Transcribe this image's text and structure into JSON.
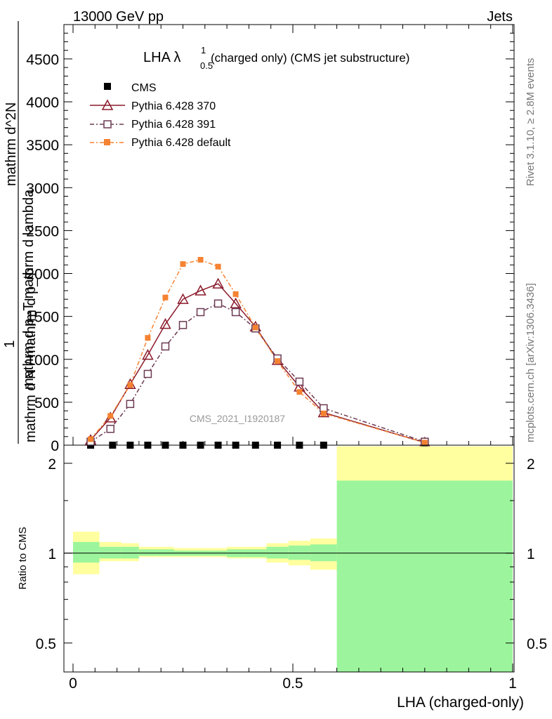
{
  "header": {
    "left": "13000 GeV pp",
    "right": "Jets"
  },
  "side_text": {
    "rivet": "Rivet 3.1.10, ≥ 2.8M events",
    "mcplots": "mcplots.cern.ch [arXiv:1306.3436]"
  },
  "chart_data": [
    {
      "type": "line",
      "title_main": "LHA λ",
      "title_sup": "1",
      "title_sub": "0.5",
      "title_rest": " (charged only) (CMS jet substructure)",
      "watermark": "CMS_2021_I1920187",
      "ylabel_top": "1",
      "ylabel_den": "mathrm d N / mathrm d p_T",
      "ylabel_num_line1": "mathrm d^2N",
      "ylabel_num_line2": "mathrm d p_T mathrm d lambda",
      "xlim": [
        0,
        1
      ],
      "ylim": [
        0,
        4900
      ],
      "yticks": [
        0,
        500,
        1000,
        1500,
        2000,
        2500,
        3000,
        3500,
        4000,
        4500
      ],
      "ytick_labels": [
        "0",
        "500",
        "1000",
        "1500",
        "2000",
        "2500",
        "3000",
        "3500",
        "4000",
        "4500"
      ],
      "series": [
        {
          "name": "CMS",
          "key": "cms",
          "color": "#000000",
          "x": [
            0.04,
            0.09,
            0.13,
            0.17,
            0.21,
            0.25,
            0.29,
            0.33,
            0.37,
            0.415,
            0.465,
            0.515,
            0.57,
            0.8
          ],
          "y": [
            0,
            0,
            0,
            0,
            0,
            0,
            0,
            0,
            0,
            0,
            0,
            0,
            0,
            0
          ]
        },
        {
          "name": "Pythia 6.428 370",
          "key": "p370",
          "color": "#8b1a2b",
          "x": [
            0.04,
            0.085,
            0.13,
            0.17,
            0.21,
            0.25,
            0.29,
            0.33,
            0.37,
            0.415,
            0.465,
            0.515,
            0.57,
            0.8
          ],
          "y": [
            60,
            320,
            710,
            1050,
            1410,
            1700,
            1800,
            1880,
            1650,
            1380,
            990,
            680,
            380,
            30
          ]
        },
        {
          "name": "Pythia 6.428 391",
          "key": "p391",
          "color": "#6b3a52",
          "x": [
            0.04,
            0.085,
            0.13,
            0.17,
            0.21,
            0.25,
            0.29,
            0.33,
            0.37,
            0.415,
            0.465,
            0.515,
            0.57,
            0.8
          ],
          "y": [
            40,
            190,
            480,
            830,
            1150,
            1400,
            1550,
            1650,
            1550,
            1360,
            1010,
            740,
            430,
            40
          ]
        },
        {
          "name": "Pythia 6.428 default",
          "key": "pdef",
          "color": "#f58231",
          "x": [
            0.04,
            0.085,
            0.13,
            0.17,
            0.21,
            0.25,
            0.29,
            0.33,
            0.37,
            0.415,
            0.465,
            0.515,
            0.57,
            0.8
          ],
          "y": [
            70,
            340,
            700,
            1250,
            1720,
            2110,
            2160,
            2080,
            1760,
            1370,
            980,
            620,
            370,
            30
          ]
        }
      ]
    },
    {
      "type": "area",
      "ylabel": "Ratio to CMS",
      "xlabel": "LHA (charged-only)",
      "xlim": [
        0,
        1
      ],
      "ylim": [
        0.4,
        2.3
      ],
      "scale": "log",
      "yticks": [
        0.5,
        1,
        2
      ],
      "ytick_labels": [
        "0.5",
        "1",
        "2"
      ],
      "xticks": [
        0,
        0.5,
        1
      ],
      "xtick_labels": [
        "0",
        "0.5",
        "1"
      ],
      "bins": [
        {
          "lo": 0.0,
          "hi": 0.06,
          "g_lo": 0.93,
          "g_hi": 1.09,
          "y_lo": 0.85,
          "y_hi": 1.18
        },
        {
          "lo": 0.06,
          "hi": 0.11,
          "g_lo": 0.96,
          "g_hi": 1.05,
          "y_lo": 0.94,
          "y_hi": 1.09
        },
        {
          "lo": 0.11,
          "hi": 0.15,
          "g_lo": 0.96,
          "g_hi": 1.05,
          "y_lo": 0.94,
          "y_hi": 1.08
        },
        {
          "lo": 0.15,
          "hi": 0.19,
          "g_lo": 0.98,
          "g_hi": 1.03,
          "y_lo": 0.97,
          "y_hi": 1.05
        },
        {
          "lo": 0.19,
          "hi": 0.23,
          "g_lo": 0.98,
          "g_hi": 1.03,
          "y_lo": 0.97,
          "y_hi": 1.05
        },
        {
          "lo": 0.23,
          "hi": 0.27,
          "g_lo": 0.98,
          "g_hi": 1.02,
          "y_lo": 0.97,
          "y_hi": 1.04
        },
        {
          "lo": 0.27,
          "hi": 0.31,
          "g_lo": 0.98,
          "g_hi": 1.02,
          "y_lo": 0.97,
          "y_hi": 1.04
        },
        {
          "lo": 0.31,
          "hi": 0.35,
          "g_lo": 0.98,
          "g_hi": 1.02,
          "y_lo": 0.97,
          "y_hi": 1.04
        },
        {
          "lo": 0.35,
          "hi": 0.39,
          "g_lo": 0.97,
          "g_hi": 1.03,
          "y_lo": 0.96,
          "y_hi": 1.05
        },
        {
          "lo": 0.39,
          "hi": 0.44,
          "g_lo": 0.97,
          "g_hi": 1.03,
          "y_lo": 0.96,
          "y_hi": 1.05
        },
        {
          "lo": 0.44,
          "hi": 0.49,
          "g_lo": 0.96,
          "g_hi": 1.05,
          "y_lo": 0.93,
          "y_hi": 1.08
        },
        {
          "lo": 0.49,
          "hi": 0.54,
          "g_lo": 0.95,
          "g_hi": 1.06,
          "y_lo": 0.91,
          "y_hi": 1.1
        },
        {
          "lo": 0.54,
          "hi": 0.6,
          "g_lo": 0.94,
          "g_hi": 1.07,
          "y_lo": 0.88,
          "y_hi": 1.12
        },
        {
          "lo": 0.6,
          "hi": 1.0,
          "g_lo": 0.4,
          "g_hi": 1.75,
          "y_lo": 0.4,
          "y_hi": 2.28
        }
      ]
    }
  ],
  "colors": {
    "band_green": "#9cf59c",
    "band_yellow": "#ffff9f"
  }
}
